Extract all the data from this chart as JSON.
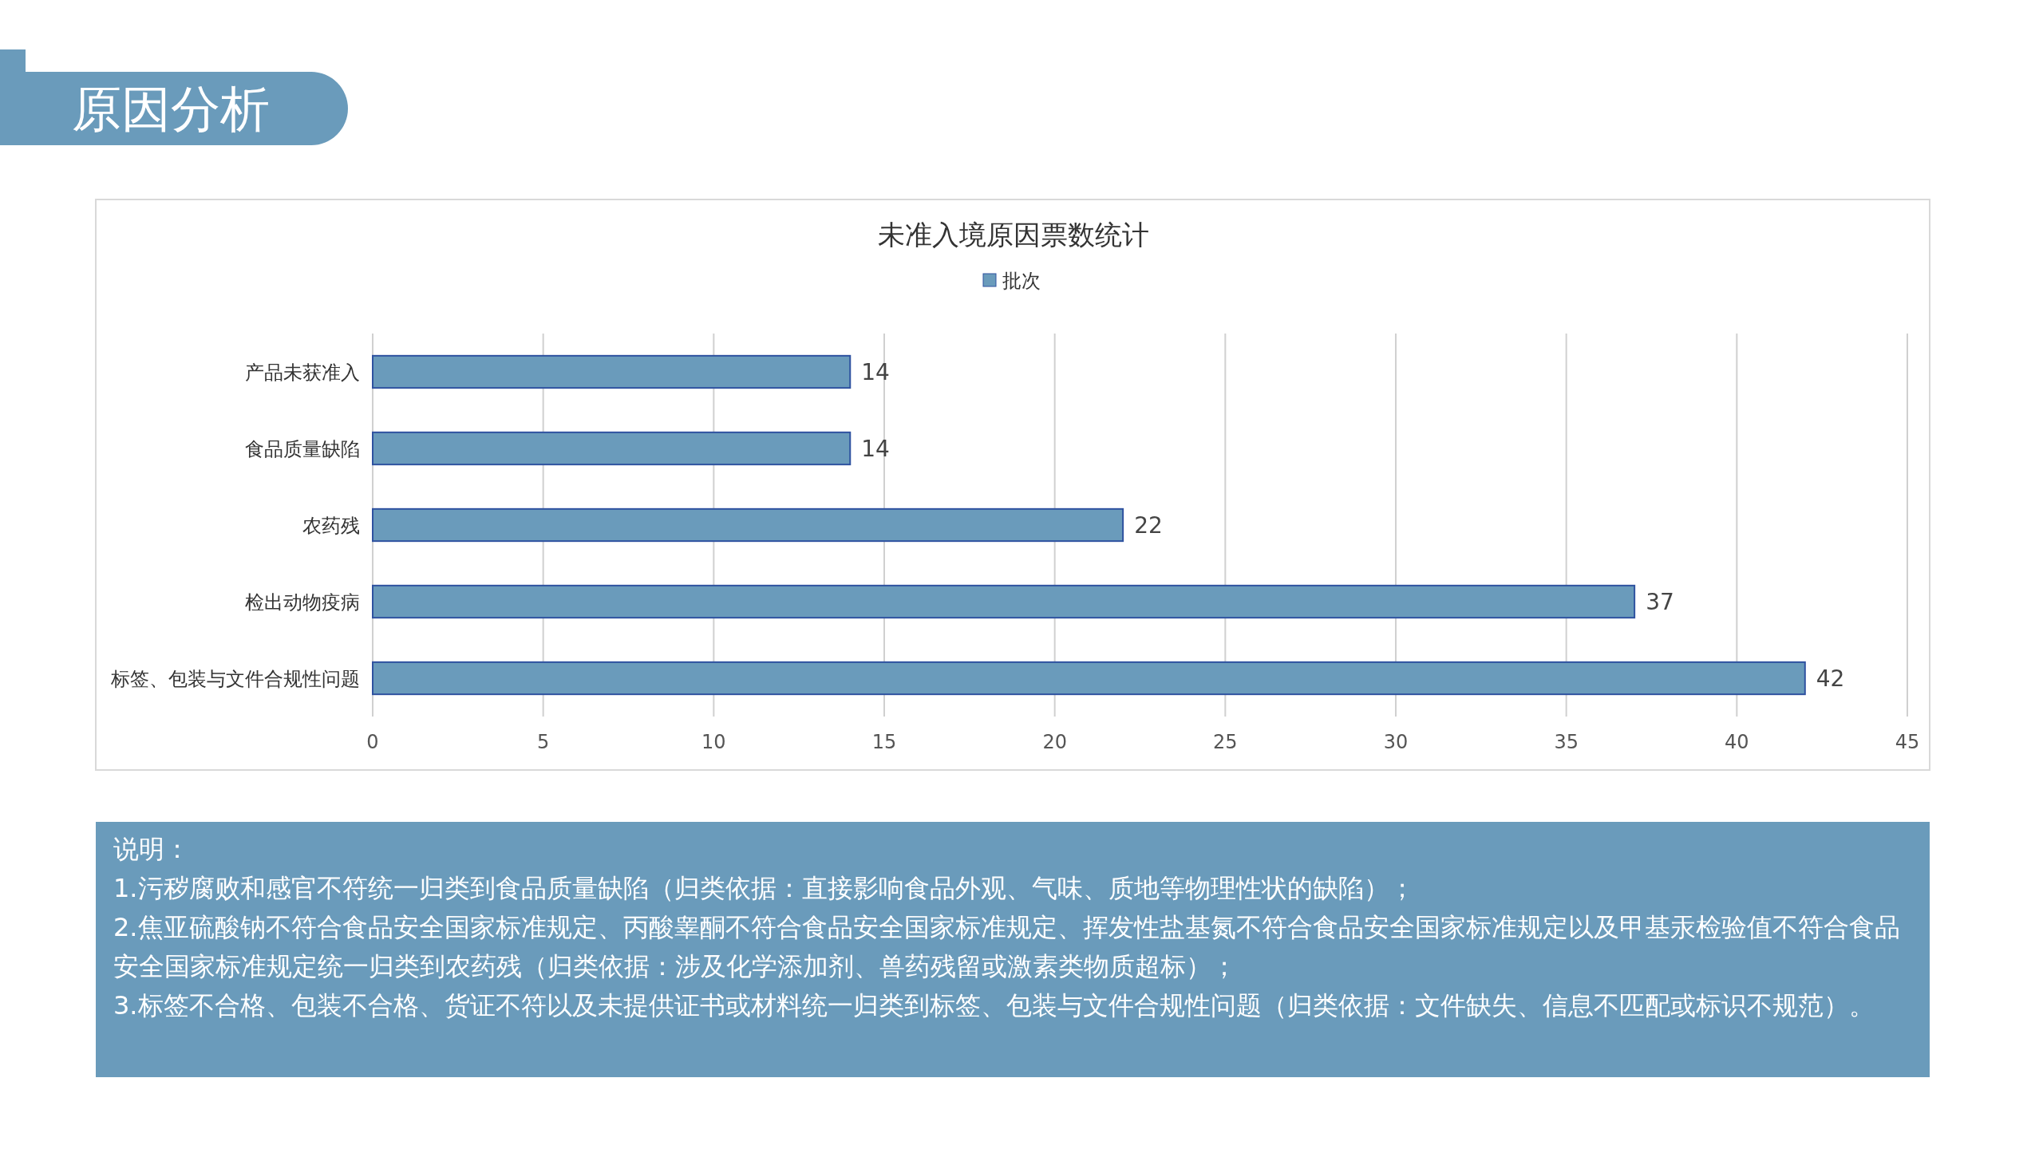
{
  "chart_data": {
    "type": "bar",
    "orientation": "horizontal",
    "title": "未准入境原因票数统计",
    "categories": [
      "产品未获准入",
      "食品质量缺陷",
      "农药残",
      "检出动物疫病",
      "标签、包装与文件合规性问题"
    ],
    "series": [
      {
        "name": "批次",
        "color": "#6a9bbb",
        "values": [
          14,
          14,
          22,
          37,
          42
        ]
      }
    ],
    "xlim": [
      0,
      45
    ],
    "xticks": [
      0,
      5,
      10,
      15,
      20,
      25,
      30,
      35,
      40,
      45
    ],
    "grid": "x",
    "legend": "top",
    "data_labels": true,
    "annotations": [
      "原因分析",
      "说明：",
      "1.污秽腐败和感官不符统一归类到食品质量缺陷（归类依据：直接影响食品外观、气味、质地等物理性状的缺陷）；",
      "2.焦亚硫酸钠不符合食品安全国家标准规定、丙酸睾酮不符合食品安全国家标准规定、挥发性盐基氮不符合食品安全国家标准规定以及甲基汞检验值不符合食品安全国家标准规定统一归类到农药残（归类依据：涉及化学添加剂、兽药残留或激素类物质超标）；",
      "3.标签不合格、包装不合格、货证不符以及未提供证书或材料统一归类到标签、包装与文件合规性问题（归类依据：文件缺失、信息不匹配或标识不规范）。"
    ]
  }
}
